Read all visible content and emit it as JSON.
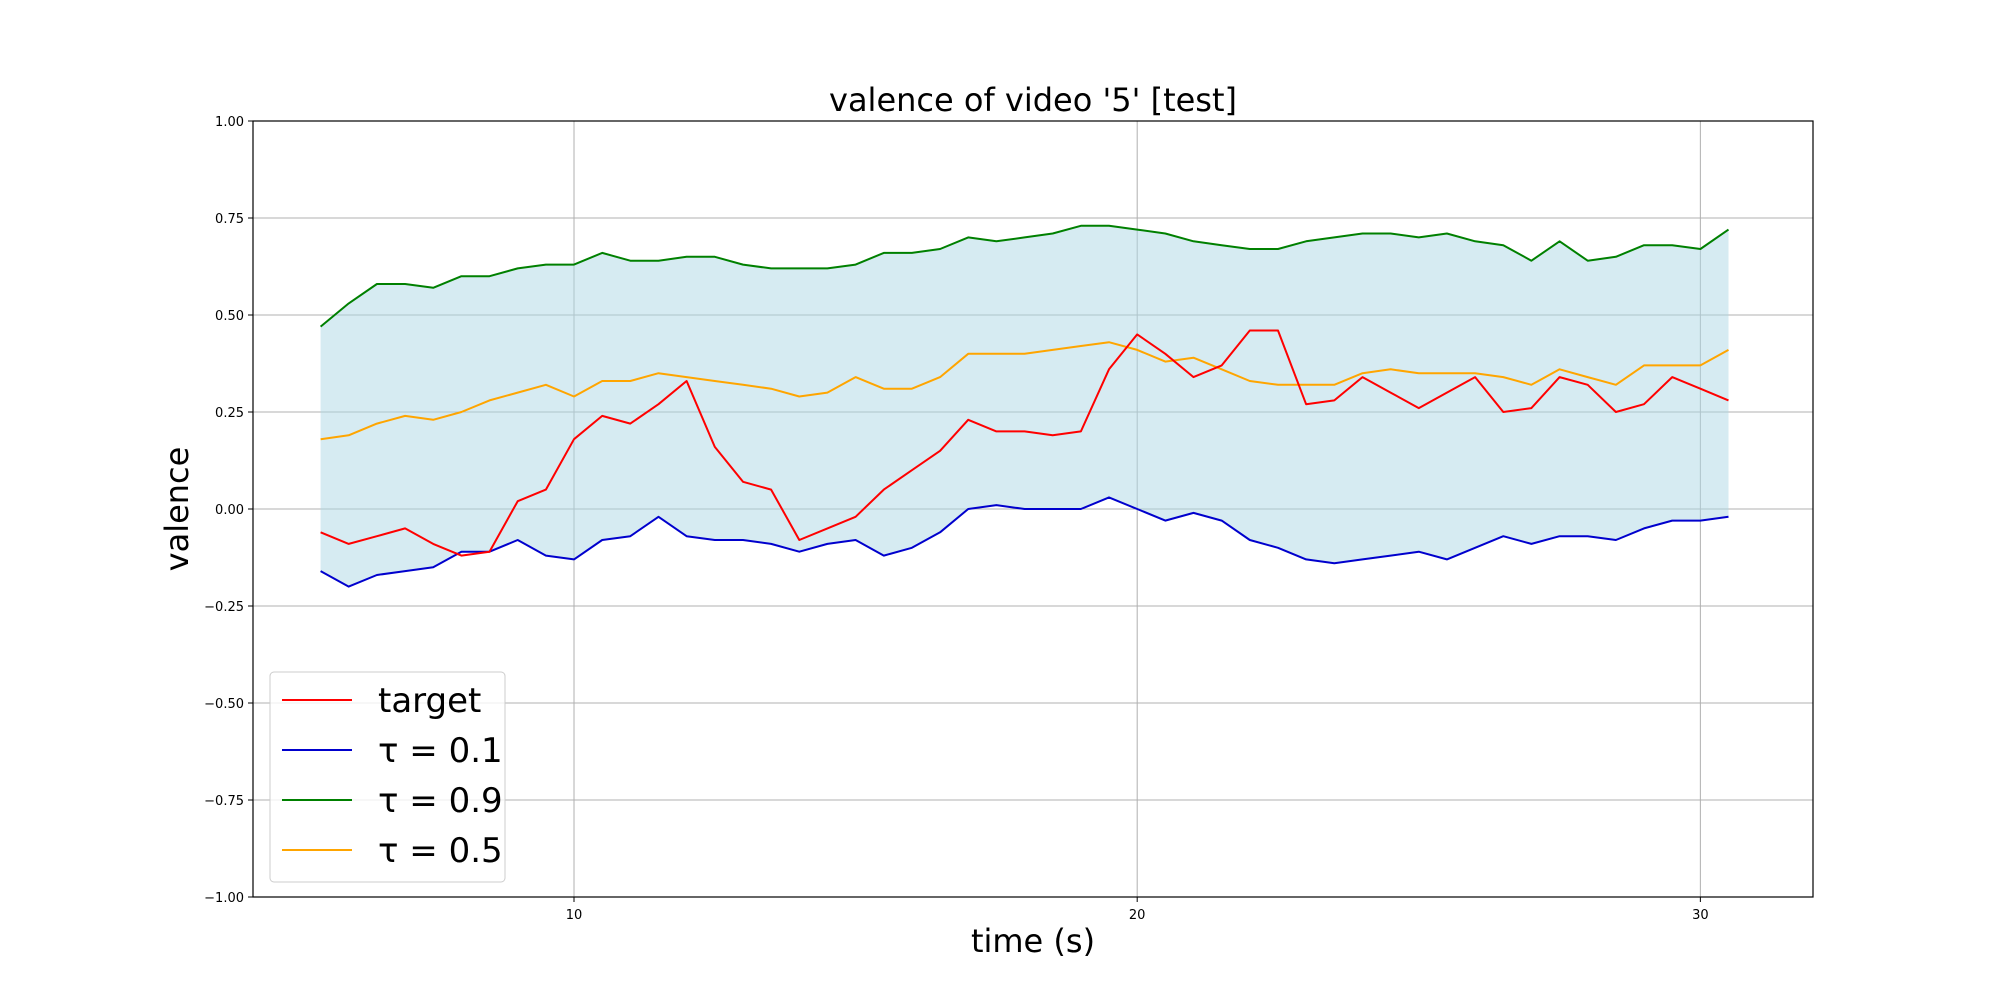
{
  "chart_data": {
    "type": "line",
    "title": "valence of video '5' [test]",
    "xlabel": "time (s)",
    "ylabel": "valence",
    "xlim": [
      4.3,
      32.0
    ],
    "ylim": [
      -1.0,
      1.0
    ],
    "xticks": [
      10,
      20,
      30
    ],
    "yticks": [
      -1.0,
      -0.75,
      -0.5,
      -0.25,
      0.0,
      0.25,
      0.5,
      0.75,
      1.0
    ],
    "xtick_labels": [
      "10",
      "20",
      "30"
    ],
    "ytick_labels": [
      "−1.00",
      "−0.75",
      "−0.50",
      "−0.25",
      "0.00",
      "0.25",
      "0.50",
      "0.75",
      "1.00"
    ],
    "grid": true,
    "legend_position": "lower-left",
    "fill_between": {
      "lower": "tau_0_1",
      "upper": "tau_0_9",
      "color": "#add8e6"
    },
    "series": [
      {
        "id": "target",
        "name": "target",
        "color": "#ff0000",
        "x": [
          5.5,
          6.0,
          6.5,
          7.0,
          7.5,
          8.0,
          8.5,
          9.0,
          9.5,
          10.0,
          10.5,
          11.0,
          11.5,
          12.0,
          12.5,
          13.0,
          13.5,
          14.0,
          14.5,
          15.0,
          15.5,
          16.0,
          16.5,
          17.0,
          17.5,
          18.0,
          18.5,
          19.0,
          19.5,
          20.0,
          20.5,
          21.0,
          21.5,
          22.0,
          22.5,
          23.0,
          23.5,
          24.0,
          24.5,
          25.0,
          25.5,
          26.0,
          26.5,
          27.0,
          27.5,
          28.0,
          28.5,
          29.0,
          29.5,
          30.0,
          30.5
        ],
        "values": [
          -0.06,
          -0.09,
          -0.07,
          -0.05,
          -0.09,
          -0.12,
          -0.11,
          0.02,
          0.05,
          0.18,
          0.24,
          0.22,
          0.27,
          0.33,
          0.16,
          0.07,
          0.05,
          -0.08,
          -0.05,
          -0.02,
          0.05,
          0.1,
          0.15,
          0.23,
          0.2,
          0.2,
          0.19,
          0.2,
          0.36,
          0.45,
          0.4,
          0.34,
          0.37,
          0.46,
          0.46,
          0.27,
          0.28,
          0.34,
          0.3,
          0.26,
          0.3,
          0.34,
          0.25,
          0.26,
          0.34,
          0.32,
          0.25,
          0.27,
          0.34,
          0.31,
          0.28
        ]
      },
      {
        "id": "tau_0_1",
        "name": "τ = 0.1",
        "color": "#0000cd",
        "x": [
          5.5,
          6.0,
          6.5,
          7.0,
          7.5,
          8.0,
          8.5,
          9.0,
          9.5,
          10.0,
          10.5,
          11.0,
          11.5,
          12.0,
          12.5,
          13.0,
          13.5,
          14.0,
          14.5,
          15.0,
          15.5,
          16.0,
          16.5,
          17.0,
          17.5,
          18.0,
          18.5,
          19.0,
          19.5,
          20.0,
          20.5,
          21.0,
          21.5,
          22.0,
          22.5,
          23.0,
          23.5,
          24.0,
          24.5,
          25.0,
          25.5,
          26.0,
          26.5,
          27.0,
          27.5,
          28.0,
          28.5,
          29.0,
          29.5,
          30.0,
          30.5
        ],
        "values": [
          -0.16,
          -0.2,
          -0.17,
          -0.16,
          -0.15,
          -0.11,
          -0.11,
          -0.08,
          -0.12,
          -0.13,
          -0.08,
          -0.07,
          -0.02,
          -0.07,
          -0.08,
          -0.08,
          -0.09,
          -0.11,
          -0.09,
          -0.08,
          -0.12,
          -0.1,
          -0.06,
          0.0,
          0.01,
          0.0,
          0.0,
          0.0,
          0.03,
          0.0,
          -0.03,
          -0.01,
          -0.03,
          -0.08,
          -0.1,
          -0.13,
          -0.14,
          -0.13,
          -0.12,
          -0.11,
          -0.13,
          -0.1,
          -0.07,
          -0.09,
          -0.07,
          -0.07,
          -0.08,
          -0.05,
          -0.03,
          -0.03,
          -0.02
        ]
      },
      {
        "id": "tau_0_9",
        "name": "τ = 0.9",
        "color": "#008000",
        "x": [
          5.5,
          6.0,
          6.5,
          7.0,
          7.5,
          8.0,
          8.5,
          9.0,
          9.5,
          10.0,
          10.5,
          11.0,
          11.5,
          12.0,
          12.5,
          13.0,
          13.5,
          14.0,
          14.5,
          15.0,
          15.5,
          16.0,
          16.5,
          17.0,
          17.5,
          18.0,
          18.5,
          19.0,
          19.5,
          20.0,
          20.5,
          21.0,
          21.5,
          22.0,
          22.5,
          23.0,
          23.5,
          24.0,
          24.5,
          25.0,
          25.5,
          26.0,
          26.5,
          27.0,
          27.5,
          28.0,
          28.5,
          29.0,
          29.5,
          30.0,
          30.5
        ],
        "values": [
          0.47,
          0.53,
          0.58,
          0.58,
          0.57,
          0.6,
          0.6,
          0.62,
          0.63,
          0.63,
          0.66,
          0.64,
          0.64,
          0.65,
          0.65,
          0.63,
          0.62,
          0.62,
          0.62,
          0.63,
          0.66,
          0.66,
          0.67,
          0.7,
          0.69,
          0.7,
          0.71,
          0.73,
          0.73,
          0.72,
          0.71,
          0.69,
          0.68,
          0.67,
          0.67,
          0.69,
          0.7,
          0.71,
          0.71,
          0.7,
          0.71,
          0.69,
          0.68,
          0.64,
          0.69,
          0.64,
          0.65,
          0.68,
          0.68,
          0.67,
          0.72
        ]
      },
      {
        "id": "tau_0_5",
        "name": "τ = 0.5",
        "color": "#ffa500",
        "x": [
          5.5,
          6.0,
          6.5,
          7.0,
          7.5,
          8.0,
          8.5,
          9.0,
          9.5,
          10.0,
          10.5,
          11.0,
          11.5,
          12.0,
          12.5,
          13.0,
          13.5,
          14.0,
          14.5,
          15.0,
          15.5,
          16.0,
          16.5,
          17.0,
          17.5,
          18.0,
          18.5,
          19.0,
          19.5,
          20.0,
          20.5,
          21.0,
          21.5,
          22.0,
          22.5,
          23.0,
          23.5,
          24.0,
          24.5,
          25.0,
          25.5,
          26.0,
          26.5,
          27.0,
          27.5,
          28.0,
          28.5,
          29.0,
          29.5,
          30.0,
          30.5
        ],
        "values": [
          0.18,
          0.19,
          0.22,
          0.24,
          0.23,
          0.25,
          0.28,
          0.3,
          0.32,
          0.29,
          0.33,
          0.33,
          0.35,
          0.34,
          0.33,
          0.32,
          0.31,
          0.29,
          0.3,
          0.34,
          0.31,
          0.31,
          0.34,
          0.4,
          0.4,
          0.4,
          0.41,
          0.42,
          0.43,
          0.41,
          0.38,
          0.39,
          0.36,
          0.33,
          0.32,
          0.32,
          0.32,
          0.35,
          0.36,
          0.35,
          0.35,
          0.35,
          0.34,
          0.32,
          0.36,
          0.34,
          0.32,
          0.37,
          0.37,
          0.37,
          0.41
        ]
      }
    ]
  }
}
